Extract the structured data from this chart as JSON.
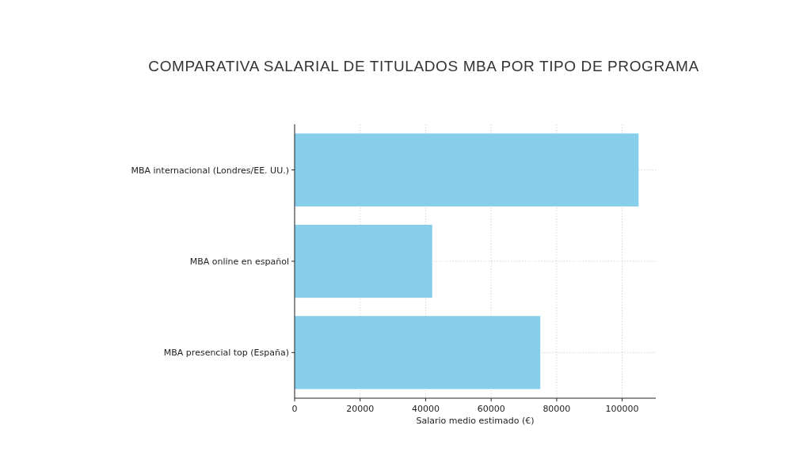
{
  "chart_data": {
    "type": "bar",
    "orientation": "horizontal",
    "title": "COMPARATIVA SALARIAL DE TITULADOS MBA POR TIPO DE PROGRAMA",
    "xlabel": "Salario medio estimado (€)",
    "categories": [
      "MBA internacional (Londres/EE. UU.)",
      "MBA online en español",
      "MBA presencial top (España)"
    ],
    "values": [
      105000,
      42000,
      75000
    ],
    "color": "#87ceeb",
    "xlim": [
      0,
      110250
    ],
    "xticks": [
      0,
      20000,
      40000,
      60000,
      80000,
      100000
    ],
    "grid": true
  }
}
